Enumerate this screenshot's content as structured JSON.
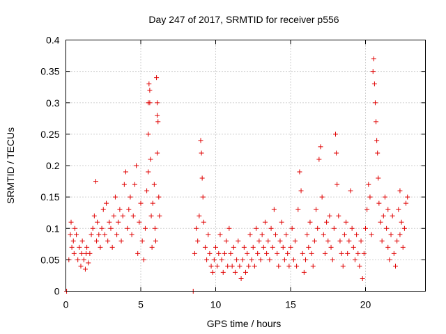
{
  "chart_data": {
    "type": "scatter",
    "title": "Day 247 of 2017, SRMTID for receiver p556",
    "xlabel": "GPS time / hours",
    "ylabel": "SRMTID / TECUs",
    "xlim": [
      0,
      24
    ],
    "ylim": [
      0,
      0.4
    ],
    "xticks": [
      0,
      5,
      10,
      15,
      20
    ],
    "xtick_labels": [
      "0",
      "5",
      "10",
      "15",
      "20"
    ],
    "yticks": [
      0,
      0.05,
      0.1,
      0.15,
      0.2,
      0.25,
      0.3,
      0.35,
      0.4
    ],
    "ytick_labels": [
      "0",
      "0.05",
      "0.1",
      "0.15",
      "0.2",
      "0.25",
      "0.3",
      "0.35",
      "0.4"
    ],
    "grid": true,
    "marker": "+",
    "color": "#e00000",
    "series": [
      {
        "name": "SRMTID",
        "points": [
          [
            0.05,
            0.0
          ],
          [
            8.5,
            0.0
          ],
          [
            0.2,
            0.05
          ],
          [
            0.3,
            0.09
          ],
          [
            0.35,
            0.11
          ],
          [
            0.4,
            0.07
          ],
          [
            0.5,
            0.08
          ],
          [
            0.55,
            0.06
          ],
          [
            0.6,
            0.1
          ],
          [
            0.7,
            0.09
          ],
          [
            0.8,
            0.05
          ],
          [
            0.9,
            0.07
          ],
          [
            1.0,
            0.04
          ],
          [
            1.05,
            0.06
          ],
          [
            1.1,
            0.08
          ],
          [
            1.2,
            0.05
          ],
          [
            1.3,
            0.035
          ],
          [
            1.35,
            0.06
          ],
          [
            1.4,
            0.07
          ],
          [
            1.5,
            0.045
          ],
          [
            1.6,
            0.06
          ],
          [
            1.7,
            0.09
          ],
          [
            1.8,
            0.1
          ],
          [
            1.9,
            0.12
          ],
          [
            2.0,
            0.175
          ],
          [
            2.05,
            0.08
          ],
          [
            2.1,
            0.11
          ],
          [
            2.2,
            0.09
          ],
          [
            2.3,
            0.07
          ],
          [
            2.4,
            0.1
          ],
          [
            2.5,
            0.13
          ],
          [
            2.6,
            0.09
          ],
          [
            2.7,
            0.14
          ],
          [
            2.8,
            0.08
          ],
          [
            2.9,
            0.11
          ],
          [
            3.0,
            0.1
          ],
          [
            3.1,
            0.07
          ],
          [
            3.2,
            0.12
          ],
          [
            3.3,
            0.15
          ],
          [
            3.4,
            0.09
          ],
          [
            3.5,
            0.11
          ],
          [
            3.6,
            0.13
          ],
          [
            3.7,
            0.08
          ],
          [
            3.8,
            0.12
          ],
          [
            3.9,
            0.17
          ],
          [
            4.0,
            0.19
          ],
          [
            4.1,
            0.1
          ],
          [
            4.2,
            0.13
          ],
          [
            4.3,
            0.15
          ],
          [
            4.4,
            0.09
          ],
          [
            4.5,
            0.12
          ],
          [
            4.6,
            0.17
          ],
          [
            4.7,
            0.2
          ],
          [
            4.8,
            0.06
          ],
          [
            4.9,
            0.11
          ],
          [
            5.0,
            0.14
          ],
          [
            5.1,
            0.08
          ],
          [
            5.2,
            0.05
          ],
          [
            5.3,
            0.1
          ],
          [
            5.4,
            0.16
          ],
          [
            5.5,
            0.19
          ],
          [
            5.5,
            0.3
          ],
          [
            5.55,
            0.33
          ],
          [
            5.6,
            0.32
          ],
          [
            5.65,
            0.21
          ],
          [
            5.7,
            0.12
          ],
          [
            5.75,
            0.07
          ],
          [
            5.8,
            0.14
          ],
          [
            5.9,
            0.17
          ],
          [
            5.95,
            0.1
          ],
          [
            6.0,
            0.08
          ],
          [
            6.05,
            0.34
          ],
          [
            6.1,
            0.3
          ],
          [
            6.1,
            0.28
          ],
          [
            6.15,
            0.27
          ],
          [
            6.2,
            0.15
          ],
          [
            6.25,
            0.12
          ],
          [
            6.1,
            0.22
          ],
          [
            5.6,
            0.3
          ],
          [
            5.5,
            0.25
          ],
          [
            8.6,
            0.06
          ],
          [
            8.7,
            0.1
          ],
          [
            8.8,
            0.08
          ],
          [
            8.9,
            0.12
          ],
          [
            9.0,
            0.24
          ],
          [
            9.05,
            0.22
          ],
          [
            9.1,
            0.18
          ],
          [
            9.15,
            0.15
          ],
          [
            9.2,
            0.11
          ],
          [
            9.3,
            0.07
          ],
          [
            9.4,
            0.05
          ],
          [
            9.5,
            0.09
          ],
          [
            9.6,
            0.06
          ],
          [
            9.7,
            0.04
          ],
          [
            9.8,
            0.03
          ],
          [
            9.9,
            0.05
          ],
          [
            10.0,
            0.07
          ],
          [
            10.1,
            0.04
          ],
          [
            10.2,
            0.06
          ],
          [
            10.3,
            0.09
          ],
          [
            10.4,
            0.05
          ],
          [
            10.5,
            0.03
          ],
          [
            10.6,
            0.06
          ],
          [
            10.7,
            0.08
          ],
          [
            10.8,
            0.04
          ],
          [
            10.9,
            0.1
          ],
          [
            11.0,
            0.06
          ],
          [
            11.1,
            0.04
          ],
          [
            11.2,
            0.07
          ],
          [
            11.3,
            0.03
          ],
          [
            11.4,
            0.05
          ],
          [
            11.5,
            0.08
          ],
          [
            11.6,
            0.04
          ],
          [
            11.7,
            0.02
          ],
          [
            11.8,
            0.05
          ],
          [
            11.9,
            0.07
          ],
          [
            12.0,
            0.03
          ],
          [
            12.1,
            0.06
          ],
          [
            12.2,
            0.04
          ],
          [
            12.3,
            0.09
          ],
          [
            12.4,
            0.05
          ],
          [
            12.5,
            0.07
          ],
          [
            12.6,
            0.04
          ],
          [
            12.7,
            0.1
          ],
          [
            12.8,
            0.06
          ],
          [
            12.9,
            0.08
          ],
          [
            13.0,
            0.05
          ],
          [
            13.1,
            0.09
          ],
          [
            13.2,
            0.07
          ],
          [
            13.3,
            0.11
          ],
          [
            13.4,
            0.06
          ],
          [
            13.5,
            0.08
          ],
          [
            13.6,
            0.05
          ],
          [
            13.7,
            0.1
          ],
          [
            13.8,
            0.07
          ],
          [
            13.9,
            0.13
          ],
          [
            14.0,
            0.09
          ],
          [
            14.1,
            0.06
          ],
          [
            14.2,
            0.04
          ],
          [
            14.3,
            0.08
          ],
          [
            14.4,
            0.11
          ],
          [
            14.5,
            0.07
          ],
          [
            14.6,
            0.05
          ],
          [
            14.7,
            0.09
          ],
          [
            14.8,
            0.06
          ],
          [
            14.9,
            0.04
          ],
          [
            15.0,
            0.07
          ],
          [
            15.1,
            0.1
          ],
          [
            15.2,
            0.05
          ],
          [
            15.3,
            0.08
          ],
          [
            15.4,
            0.04
          ],
          [
            15.5,
            0.13
          ],
          [
            15.6,
            0.19
          ],
          [
            15.7,
            0.16
          ],
          [
            15.8,
            0.06
          ],
          [
            15.9,
            0.03
          ],
          [
            16.0,
            0.05
          ],
          [
            16.1,
            0.09
          ],
          [
            16.2,
            0.07
          ],
          [
            16.3,
            0.11
          ],
          [
            16.4,
            0.06
          ],
          [
            16.5,
            0.04
          ],
          [
            16.6,
            0.08
          ],
          [
            16.7,
            0.13
          ],
          [
            16.8,
            0.1
          ],
          [
            16.9,
            0.21
          ],
          [
            17.0,
            0.23
          ],
          [
            17.1,
            0.15
          ],
          [
            17.2,
            0.09
          ],
          [
            17.3,
            0.06
          ],
          [
            17.4,
            0.11
          ],
          [
            17.5,
            0.08
          ],
          [
            17.6,
            0.12
          ],
          [
            17.7,
            0.07
          ],
          [
            17.8,
            0.05
          ],
          [
            17.9,
            0.1
          ],
          [
            18.0,
            0.25
          ],
          [
            18.05,
            0.22
          ],
          [
            18.1,
            0.17
          ],
          [
            18.2,
            0.12
          ],
          [
            18.3,
            0.08
          ],
          [
            18.4,
            0.06
          ],
          [
            18.5,
            0.04
          ],
          [
            18.6,
            0.09
          ],
          [
            18.7,
            0.11
          ],
          [
            18.8,
            0.06
          ],
          [
            18.9,
            0.08
          ],
          [
            19.0,
            0.16
          ],
          [
            19.1,
            0.1
          ],
          [
            19.2,
            0.07
          ],
          [
            19.3,
            0.05
          ],
          [
            19.4,
            0.09
          ],
          [
            19.5,
            0.06
          ],
          [
            19.6,
            0.04
          ],
          [
            19.7,
            0.08
          ],
          [
            19.8,
            0.02
          ],
          [
            19.9,
            0.06
          ],
          [
            20.0,
            0.1
          ],
          [
            20.1,
            0.13
          ],
          [
            20.2,
            0.17
          ],
          [
            20.3,
            0.15
          ],
          [
            20.4,
            0.09
          ],
          [
            20.5,
            0.35
          ],
          [
            20.55,
            0.37
          ],
          [
            20.6,
            0.33
          ],
          [
            20.65,
            0.3
          ],
          [
            20.7,
            0.27
          ],
          [
            20.75,
            0.24
          ],
          [
            20.8,
            0.22
          ],
          [
            20.85,
            0.18
          ],
          [
            20.9,
            0.14
          ],
          [
            21.0,
            0.11
          ],
          [
            21.1,
            0.08
          ],
          [
            21.2,
            0.12
          ],
          [
            21.3,
            0.15
          ],
          [
            21.4,
            0.1
          ],
          [
            21.5,
            0.07
          ],
          [
            21.6,
            0.05
          ],
          [
            21.7,
            0.09
          ],
          [
            21.8,
            0.12
          ],
          [
            21.9,
            0.06
          ],
          [
            22.0,
            0.04
          ],
          [
            22.1,
            0.08
          ],
          [
            22.2,
            0.13
          ],
          [
            22.3,
            0.16
          ],
          [
            22.4,
            0.11
          ],
          [
            22.5,
            0.07
          ],
          [
            22.6,
            0.1
          ],
          [
            22.7,
            0.14
          ],
          [
            22.8,
            0.15
          ],
          [
            22.3,
            0.09
          ],
          [
            21.5,
            0.13
          ]
        ]
      }
    ]
  }
}
